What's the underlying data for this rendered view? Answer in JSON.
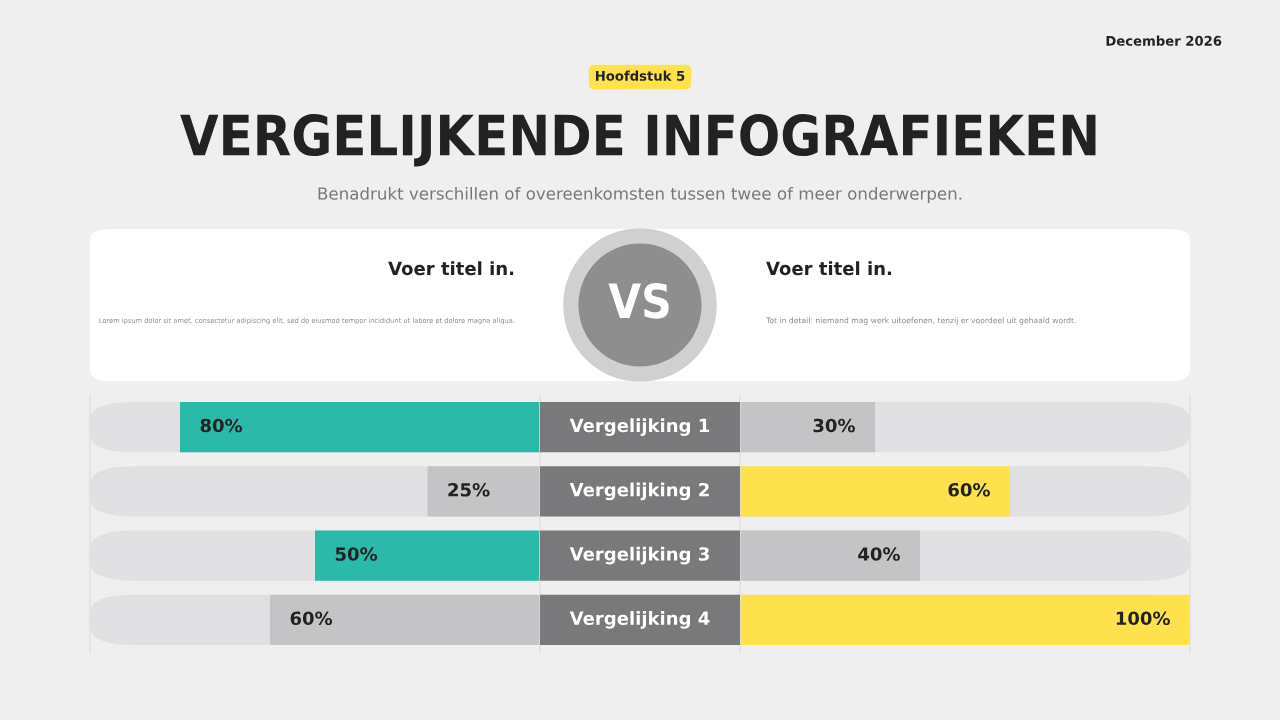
{
  "chart_data": [
    {
      "type": "bar",
      "orientation": "horizontal",
      "title": "VERGELIJKENDE INFOGRAFIEKEN",
      "subtitle": "Benadrukt verschillen of overeenkomsten tussen twee of meer onderwerpen.",
      "annotations": [
        "December 2026",
        "Hoofdstuk 5",
        "Voer titel in.",
        "Lorem ipsum dolor sit amet, consectetur adipiscing elit, sed do eiusmod tempor incididunt ut labore et dolore magna aliqua.",
        "VS"
      ],
      "categories": [
        "Vergelijking 1",
        "Vergelijking 2",
        "Vergelijking 3",
        "Vergelijking 4"
      ],
      "xlim": [
        100,
        0
      ],
      "series": [
        {
          "colors": [
            "#2bb9a9",
            "#c4c4c6",
            "#2bb9a9",
            "#c4c4c6"
          ],
          "values": [
            80,
            25,
            50,
            60
          ],
          "value_labels": [
            "80%",
            "25%",
            "50%",
            "60%"
          ]
        }
      ]
    },
    {
      "type": "bar",
      "orientation": "horizontal",
      "annotations": [
        "Voer titel in.",
        "Tot in detail: niemand mag werk uitoefenen, tenzij er voordeel uit gehaald wordt."
      ],
      "categories": [
        null,
        null,
        null,
        null
      ],
      "xlim": [
        0,
        100
      ],
      "series": [
        {
          "colors": [
            "#c4c4c6",
            "#fde14d",
            "#c4c4c6",
            "#fde14d"
          ],
          "values": [
            30,
            60,
            40,
            100
          ],
          "value_labels": [
            "30%",
            "60%",
            "40%",
            "100%"
          ]
        }
      ]
    }
  ]
}
